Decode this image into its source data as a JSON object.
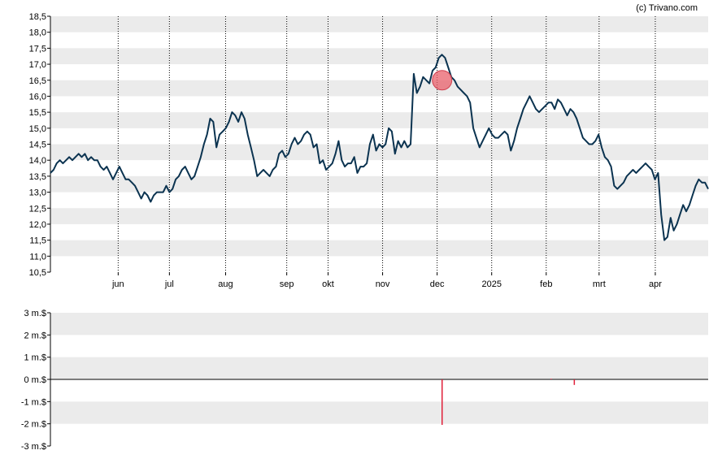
{
  "credit": "(c) Trivano.com",
  "colors": {
    "price_line": "#0b3350",
    "band": "#ebebeb",
    "marker": "#e8606b",
    "volume_bar": "#e0203a",
    "axis": "#000000"
  },
  "chart_data": [
    {
      "type": "line",
      "y_tick_labels": [
        "10,5",
        "11,0",
        "11,5",
        "12,0",
        "12,5",
        "13,0",
        "13,5",
        "14,0",
        "14,5",
        "15,0",
        "15,5",
        "16,0",
        "16,5",
        "17,0",
        "17,5",
        "18,0",
        "18,5"
      ],
      "ylim": [
        10.5,
        18.5
      ],
      "x_tick_labels": [
        "jun",
        "jul",
        "aug",
        "sep",
        "okt",
        "nov",
        "dec",
        "2025",
        "feb",
        "mrt",
        "apr"
      ],
      "x_ticks_t": [
        20.5,
        36,
        53,
        71.5,
        84,
        100.5,
        117,
        133.5,
        150,
        166,
        183
      ],
      "xlim": [
        0,
        199
      ],
      "grid": {
        "horizontal_bands": true,
        "vertical_dotted": true
      },
      "marker": {
        "t": 118.5,
        "y": 16.5
      },
      "series": [
        {
          "y": [
            13.6,
            13.7,
            13.9,
            14.0,
            13.9,
            14.0,
            14.1,
            14.0,
            14.1,
            14.2,
            14.1,
            14.2,
            14.0,
            14.1,
            14.0,
            14.0,
            13.8,
            13.7,
            13.8,
            13.6,
            13.4,
            13.6,
            13.8,
            13.6,
            13.4,
            13.4,
            13.3,
            13.2,
            13.0,
            12.8,
            13.0,
            12.9,
            12.7,
            12.9,
            13.0,
            13.0,
            13.0,
            13.2,
            13.0,
            13.1,
            13.4,
            13.5,
            13.7,
            13.8,
            13.6,
            13.4,
            13.5,
            13.8,
            14.1,
            14.5,
            14.8,
            15.3,
            15.2,
            14.4,
            14.8,
            14.9,
            15.0,
            15.2,
            15.5,
            15.4,
            15.2,
            15.5,
            15.3,
            14.8,
            14.4,
            14.0,
            13.5,
            13.6,
            13.7,
            13.6,
            13.5,
            13.7,
            13.8,
            14.2,
            14.3,
            14.1,
            14.2,
            14.5,
            14.7,
            14.5,
            14.6,
            14.8,
            14.9,
            14.8,
            14.4,
            14.5,
            13.9,
            14.0,
            13.7,
            13.8,
            13.9,
            14.2,
            14.6,
            14.0,
            13.8,
            13.9,
            13.9,
            14.1,
            13.6,
            13.8,
            13.8,
            13.9,
            14.5,
            14.8,
            14.3,
            14.5,
            14.4,
            14.5,
            15.0,
            14.9,
            14.2,
            14.6,
            14.4,
            14.6,
            14.4,
            14.5,
            16.7,
            16.1,
            16.3,
            16.6,
            16.5,
            16.4,
            16.8,
            16.9,
            17.2,
            17.3,
            17.2,
            16.9,
            16.6,
            16.5,
            16.3,
            16.2,
            16.1,
            16.0,
            15.8,
            15.0,
            14.7,
            14.4,
            14.6,
            14.8,
            15.0,
            14.8,
            14.7,
            14.7,
            14.8,
            14.9,
            14.8,
            14.3,
            14.6,
            15.0,
            15.3,
            15.6,
            15.8,
            16.0,
            15.8,
            15.6,
            15.5,
            15.6,
            15.7,
            15.8,
            15.8,
            15.6,
            15.9,
            15.8,
            15.6,
            15.4,
            15.6,
            15.5,
            15.3,
            15.0,
            14.7,
            14.6,
            14.5,
            14.5,
            14.6,
            14.8,
            14.4,
            14.1,
            14.0,
            13.8,
            13.2,
            13.1,
            13.2,
            13.3,
            13.5,
            13.6,
            13.7,
            13.6,
            13.7,
            13.8,
            13.9,
            13.8,
            13.7,
            13.4,
            13.6,
            12.3,
            11.5,
            11.6,
            12.2,
            11.8,
            12.0,
            12.3,
            12.6,
            12.4,
            12.6,
            12.9,
            13.2,
            13.4,
            13.3,
            13.3,
            13.1
          ]
        }
      ]
    },
    {
      "type": "bar",
      "y_tick_labels": [
        "-3 m.$",
        "-2 m.$",
        "-1 m.$",
        "0 m.$",
        "1 m.$",
        "2 m.$",
        "3 m.$"
      ],
      "ylim": [
        -3,
        3
      ],
      "xlim": [
        0,
        199
      ],
      "bars": [
        {
          "t": 118.5,
          "value": -2.05
        },
        {
          "t": 151.5,
          "value": 0.03
        },
        {
          "t": 158.5,
          "value": -0.25
        }
      ]
    }
  ]
}
